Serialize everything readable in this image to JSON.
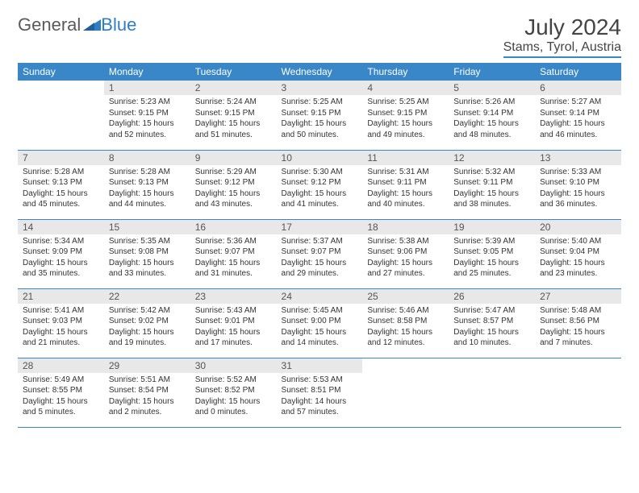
{
  "logo": {
    "text1": "General",
    "text2": "Blue"
  },
  "title": "July 2024",
  "location": "Stams, Tyrol, Austria",
  "colors": {
    "header_bg": "#3a87c8",
    "header_fg": "#ffffff",
    "daynum_bg": "#e8e8e8",
    "row_border": "#3a87c8"
  },
  "weekdays": [
    "Sunday",
    "Monday",
    "Tuesday",
    "Wednesday",
    "Thursday",
    "Friday",
    "Saturday"
  ],
  "weeks": [
    [
      null,
      {
        "n": "1",
        "sr": "5:23 AM",
        "ss": "9:15 PM",
        "dl": "15 hours and 52 minutes."
      },
      {
        "n": "2",
        "sr": "5:24 AM",
        "ss": "9:15 PM",
        "dl": "15 hours and 51 minutes."
      },
      {
        "n": "3",
        "sr": "5:25 AM",
        "ss": "9:15 PM",
        "dl": "15 hours and 50 minutes."
      },
      {
        "n": "4",
        "sr": "5:25 AM",
        "ss": "9:15 PM",
        "dl": "15 hours and 49 minutes."
      },
      {
        "n": "5",
        "sr": "5:26 AM",
        "ss": "9:14 PM",
        "dl": "15 hours and 48 minutes."
      },
      {
        "n": "6",
        "sr": "5:27 AM",
        "ss": "9:14 PM",
        "dl": "15 hours and 46 minutes."
      }
    ],
    [
      {
        "n": "7",
        "sr": "5:28 AM",
        "ss": "9:13 PM",
        "dl": "15 hours and 45 minutes."
      },
      {
        "n": "8",
        "sr": "5:28 AM",
        "ss": "9:13 PM",
        "dl": "15 hours and 44 minutes."
      },
      {
        "n": "9",
        "sr": "5:29 AM",
        "ss": "9:12 PM",
        "dl": "15 hours and 43 minutes."
      },
      {
        "n": "10",
        "sr": "5:30 AM",
        "ss": "9:12 PM",
        "dl": "15 hours and 41 minutes."
      },
      {
        "n": "11",
        "sr": "5:31 AM",
        "ss": "9:11 PM",
        "dl": "15 hours and 40 minutes."
      },
      {
        "n": "12",
        "sr": "5:32 AM",
        "ss": "9:11 PM",
        "dl": "15 hours and 38 minutes."
      },
      {
        "n": "13",
        "sr": "5:33 AM",
        "ss": "9:10 PM",
        "dl": "15 hours and 36 minutes."
      }
    ],
    [
      {
        "n": "14",
        "sr": "5:34 AM",
        "ss": "9:09 PM",
        "dl": "15 hours and 35 minutes."
      },
      {
        "n": "15",
        "sr": "5:35 AM",
        "ss": "9:08 PM",
        "dl": "15 hours and 33 minutes."
      },
      {
        "n": "16",
        "sr": "5:36 AM",
        "ss": "9:07 PM",
        "dl": "15 hours and 31 minutes."
      },
      {
        "n": "17",
        "sr": "5:37 AM",
        "ss": "9:07 PM",
        "dl": "15 hours and 29 minutes."
      },
      {
        "n": "18",
        "sr": "5:38 AM",
        "ss": "9:06 PM",
        "dl": "15 hours and 27 minutes."
      },
      {
        "n": "19",
        "sr": "5:39 AM",
        "ss": "9:05 PM",
        "dl": "15 hours and 25 minutes."
      },
      {
        "n": "20",
        "sr": "5:40 AM",
        "ss": "9:04 PM",
        "dl": "15 hours and 23 minutes."
      }
    ],
    [
      {
        "n": "21",
        "sr": "5:41 AM",
        "ss": "9:03 PM",
        "dl": "15 hours and 21 minutes."
      },
      {
        "n": "22",
        "sr": "5:42 AM",
        "ss": "9:02 PM",
        "dl": "15 hours and 19 minutes."
      },
      {
        "n": "23",
        "sr": "5:43 AM",
        "ss": "9:01 PM",
        "dl": "15 hours and 17 minutes."
      },
      {
        "n": "24",
        "sr": "5:45 AM",
        "ss": "9:00 PM",
        "dl": "15 hours and 14 minutes."
      },
      {
        "n": "25",
        "sr": "5:46 AM",
        "ss": "8:58 PM",
        "dl": "15 hours and 12 minutes."
      },
      {
        "n": "26",
        "sr": "5:47 AM",
        "ss": "8:57 PM",
        "dl": "15 hours and 10 minutes."
      },
      {
        "n": "27",
        "sr": "5:48 AM",
        "ss": "8:56 PM",
        "dl": "15 hours and 7 minutes."
      }
    ],
    [
      {
        "n": "28",
        "sr": "5:49 AM",
        "ss": "8:55 PM",
        "dl": "15 hours and 5 minutes."
      },
      {
        "n": "29",
        "sr": "5:51 AM",
        "ss": "8:54 PM",
        "dl": "15 hours and 2 minutes."
      },
      {
        "n": "30",
        "sr": "5:52 AM",
        "ss": "8:52 PM",
        "dl": "15 hours and 0 minutes."
      },
      {
        "n": "31",
        "sr": "5:53 AM",
        "ss": "8:51 PM",
        "dl": "14 hours and 57 minutes."
      },
      null,
      null,
      null
    ]
  ],
  "labels": {
    "sunrise": "Sunrise:",
    "sunset": "Sunset:",
    "daylight": "Daylight:"
  }
}
